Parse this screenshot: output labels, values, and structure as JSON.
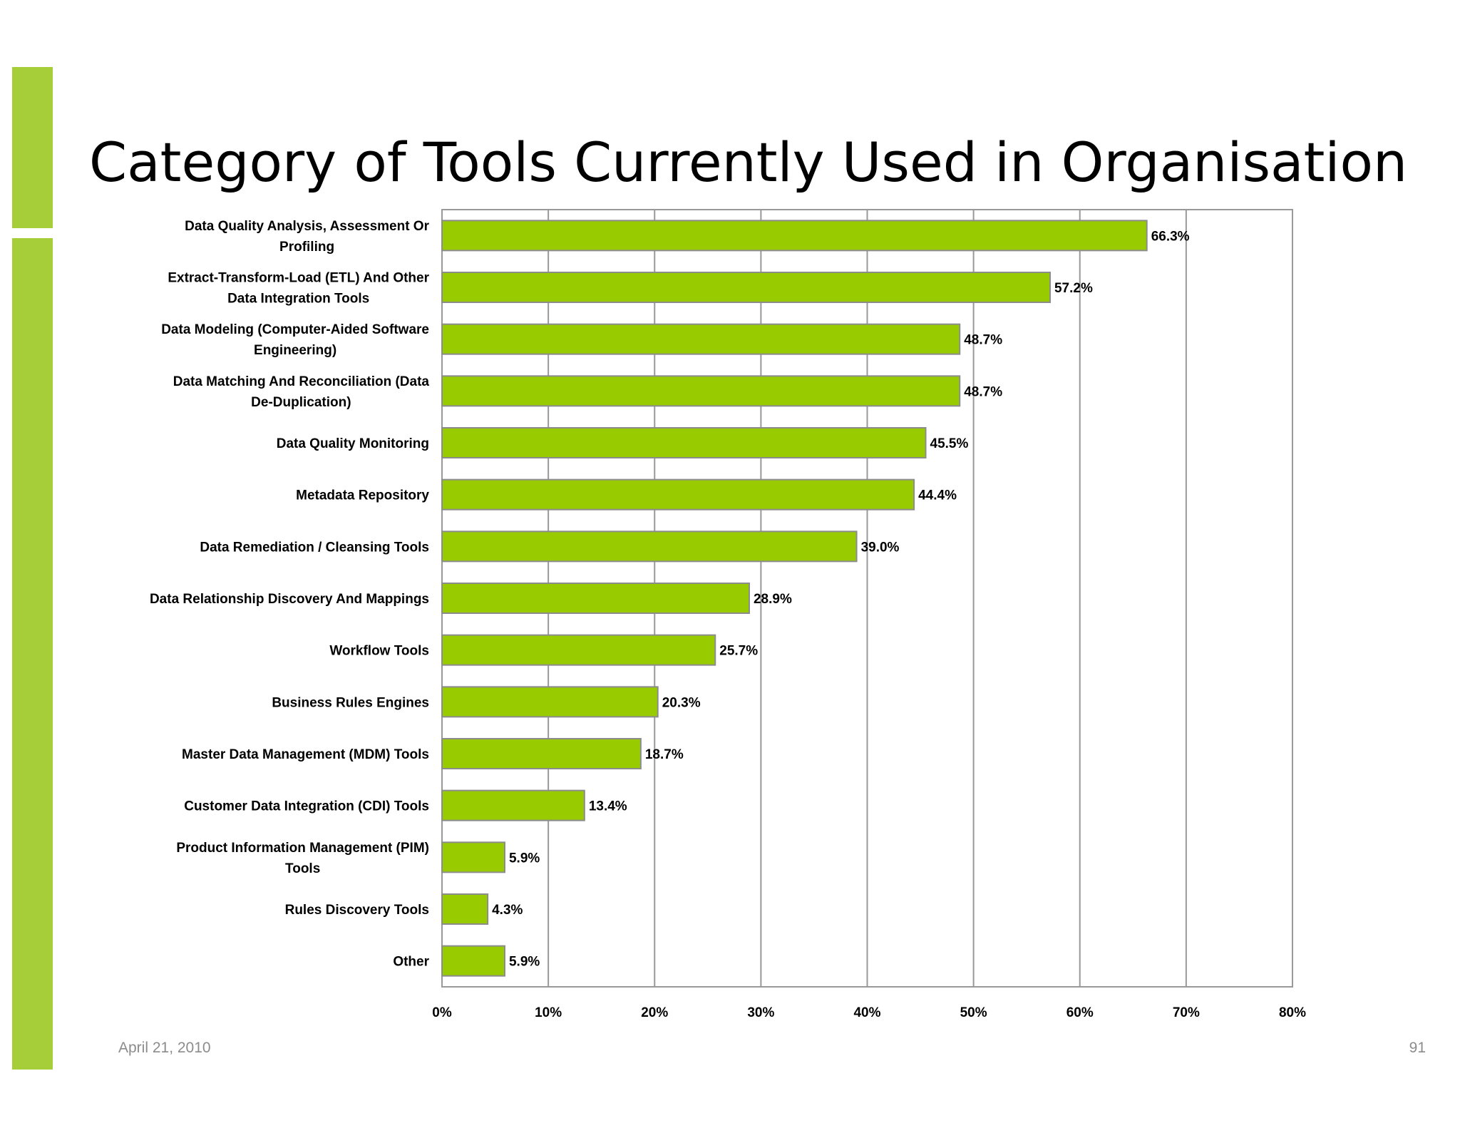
{
  "slide": {
    "title": "Category of Tools Currently Used in Organisation",
    "date": "April 21, 2010",
    "page_number": "91",
    "accent_color": "#a6ce39"
  },
  "chart_data": {
    "type": "bar",
    "orientation": "horizontal",
    "categories": [
      "Data Quality Analysis, Assessment Or Profiling",
      "Extract-Transform-Load (ETL) And Other Data Integration Tools",
      "Data Modeling (Computer-Aided Software Engineering)",
      "Data Matching And Reconciliation (Data De-Duplication)",
      "Data Quality Monitoring",
      "Metadata Repository",
      "Data Remediation / Cleansing Tools",
      "Data Relationship Discovery And Mappings",
      "Workflow Tools",
      "Business Rules Engines",
      "Master Data Management (MDM) Tools",
      "Customer Data Integration (CDI) Tools",
      "Product Information Management (PIM) Tools",
      "Rules Discovery Tools",
      "Other"
    ],
    "category_label_lines": [
      [
        "Data Quality Analysis, Assessment Or",
        "Profiling"
      ],
      [
        "Extract-Transform-Load (ETL) And Other",
        "Data Integration Tools"
      ],
      [
        "Data Modeling (Computer-Aided Software",
        "Engineering)"
      ],
      [
        "Data Matching And Reconciliation (Data",
        "De-Duplication)"
      ],
      [
        "Data Quality Monitoring"
      ],
      [
        "Metadata Repository"
      ],
      [
        "Data Remediation / Cleansing Tools"
      ],
      [
        "Data Relationship Discovery And Mappings"
      ],
      [
        "Workflow Tools"
      ],
      [
        "Business Rules Engines"
      ],
      [
        "Master Data Management (MDM) Tools"
      ],
      [
        "Customer Data Integration (CDI) Tools"
      ],
      [
        "Product Information Management (PIM)",
        "Tools"
      ],
      [
        "Rules Discovery Tools"
      ],
      [
        "Other"
      ]
    ],
    "values": [
      66.3,
      57.2,
      48.7,
      48.7,
      45.5,
      44.4,
      39.0,
      28.9,
      25.7,
      20.3,
      18.7,
      13.4,
      5.9,
      4.3,
      5.9
    ],
    "data_labels": [
      "66.3%",
      "57.2%",
      "48.7%",
      "48.7%",
      "45.5%",
      "44.4%",
      "39.0%",
      "28.9%",
      "25.7%",
      "20.3%",
      "18.7%",
      "13.4%",
      "5.9%",
      "4.3%",
      "5.9%"
    ],
    "xlim": [
      0,
      80
    ],
    "x_ticks": [
      0,
      10,
      20,
      30,
      40,
      50,
      60,
      70,
      80
    ],
    "x_tick_labels": [
      "0%",
      "10%",
      "20%",
      "30%",
      "40%",
      "50%",
      "60%",
      "70%",
      "80%"
    ],
    "grid": true,
    "legend": false,
    "bar_color": "#99cc00",
    "bar_edge_color": "#8c8c8c"
  }
}
